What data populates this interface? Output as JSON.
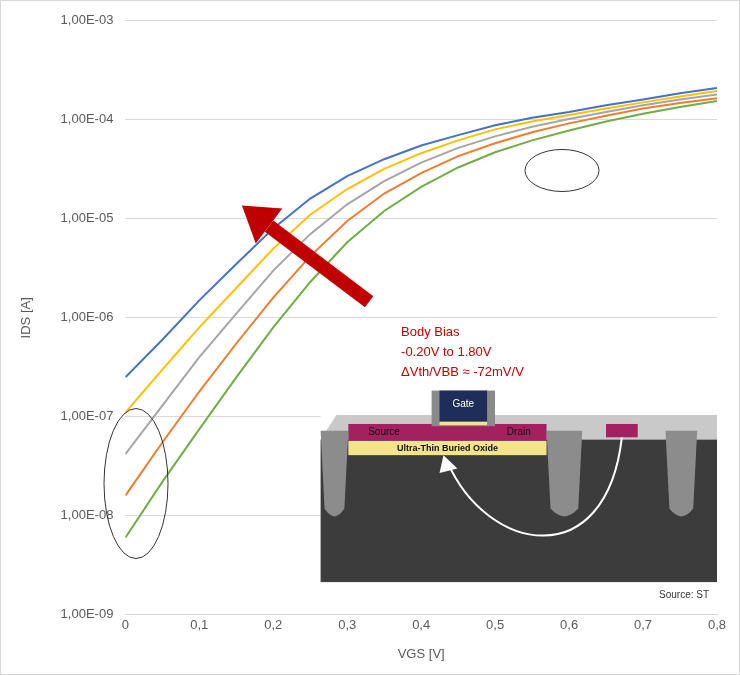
{
  "chart_data": {
    "type": "line",
    "xlabel": "VGS [V]",
    "ylabel": "IDS [A]",
    "log": "y",
    "grid": "y",
    "xlim": [
      0,
      0.8
    ],
    "ylim": [
      1e-09,
      0.001
    ],
    "xticks": [
      0,
      {
        "value": 0.1,
        "label": "0,1"
      },
      {
        "value": 0.2,
        "label": "0,2"
      },
      {
        "value": 0.3,
        "label": "0,3"
      },
      {
        "value": 0.4,
        "label": "0,4"
      },
      {
        "value": 0.5,
        "label": "0,5"
      },
      {
        "value": 0.6,
        "label": "0,6"
      },
      {
        "value": 0.7,
        "label": "0,7"
      },
      {
        "value": 0.8,
        "label": "0,8"
      }
    ],
    "yticks": [
      {
        "value": 1e-09,
        "label": "1,00E-09"
      },
      {
        "value": 1e-08,
        "label": "1,00E-08"
      },
      {
        "value": 1e-07,
        "label": "1,00E-07"
      },
      {
        "value": 1e-06,
        "label": "1,00E-06"
      },
      {
        "value": 1e-05,
        "label": "1,00E-05"
      },
      {
        "value": 0.0001,
        "label": "1,00E-04"
      },
      {
        "value": 0.001,
        "label": "1,00E-03"
      }
    ],
    "x": [
      0,
      0.05,
      0.1,
      0.15,
      0.2,
      0.25,
      0.3,
      0.35,
      0.4,
      0.45,
      0.5,
      0.55,
      0.6,
      0.65,
      0.7,
      0.75,
      0.8
    ],
    "series": [
      {
        "color": "#4472c4",
        "values": [
          2.5e-07,
          6e-07,
          1.5e-06,
          3.5e-06,
          8e-06,
          1.6e-05,
          2.7e-05,
          4e-05,
          5.5e-05,
          7e-05,
          8.8e-05,
          0.000105,
          0.00012,
          0.00014,
          0.00016,
          0.000185,
          0.00021
        ]
      },
      {
        "color": "#ffc000",
        "values": [
          1.1e-07,
          3e-07,
          8e-07,
          2e-06,
          5e-06,
          1.1e-05,
          2e-05,
          3.2e-05,
          4.6e-05,
          6.2e-05,
          8e-05,
          9.6e-05,
          0.000112,
          0.00013,
          0.00015,
          0.000172,
          0.000195
        ]
      },
      {
        "color": "#a5a5a5",
        "values": [
          4.2e-08,
          1.3e-07,
          4e-07,
          1.1e-06,
          3e-06,
          7e-06,
          1.4e-05,
          2.4e-05,
          3.7e-05,
          5.2e-05,
          6.8e-05,
          8.5e-05,
          0.000102,
          0.00012,
          0.00014,
          0.00016,
          0.00018
        ]
      },
      {
        "color": "#ed7d31",
        "values": [
          1.6e-08,
          5.5e-08,
          1.8e-07,
          5.5e-07,
          1.6e-06,
          4.2e-06,
          9.5e-06,
          1.8e-05,
          2.9e-05,
          4.3e-05,
          5.8e-05,
          7.5e-05,
          9.2e-05,
          0.00011,
          0.00013,
          0.000148,
          0.000165
        ]
      },
      {
        "color": "#70ad47",
        "values": [
          6e-09,
          2.2e-08,
          7.5e-08,
          2.5e-07,
          8e-07,
          2.3e-06,
          5.8e-06,
          1.2e-05,
          2.1e-05,
          3.3e-05,
          4.7e-05,
          6.2e-05,
          7.8e-05,
          9.6e-05,
          0.000115,
          0.000135,
          0.000155
        ]
      }
    ],
    "annotations": [
      "Body Bias",
      "-0.20V to 1.80V",
      "ΔVth/VBB ≈ -72mV/V"
    ],
    "inset": {
      "gate": "Gate",
      "source": "Source",
      "drain": "Drain",
      "oxide": "Ultra-Thin Buried Oxide",
      "credit": "Source: ST"
    }
  }
}
